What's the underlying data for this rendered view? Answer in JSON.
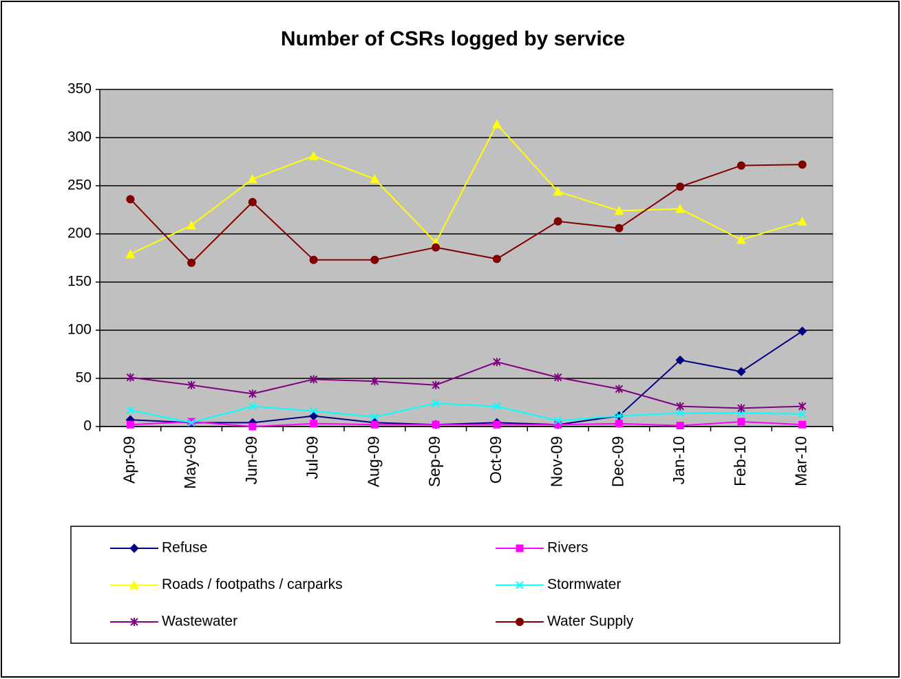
{
  "chart_data": {
    "type": "line",
    "title": "Number of CSRs logged by service",
    "categories": [
      "Apr-09",
      "May-09",
      "Jun-09",
      "Jul-09",
      "Aug-09",
      "Sep-09",
      "Oct-09",
      "Nov-09",
      "Dec-09",
      "Jan-10",
      "Feb-10",
      "Mar-10"
    ],
    "series": [
      {
        "name": "Refuse",
        "color": "#000080",
        "marker": "diamond",
        "values": [
          7,
          4,
          4,
          11,
          4,
          2,
          4,
          2,
          11,
          69,
          57,
          99
        ]
      },
      {
        "name": "Rivers",
        "color": "#ff00ff",
        "marker": "square",
        "values": [
          2,
          5,
          0,
          3,
          2,
          2,
          2,
          2,
          3,
          1,
          5,
          2
        ]
      },
      {
        "name": "Roads / footpaths / carparks",
        "color": "#ffff00",
        "marker": "triangle",
        "values": [
          179,
          209,
          257,
          281,
          257,
          191,
          314,
          244,
          224,
          226,
          194,
          213
        ]
      },
      {
        "name": "Stormwater",
        "color": "#00ffff",
        "marker": "x",
        "values": [
          17,
          4,
          21,
          16,
          10,
          24,
          21,
          6,
          11,
          14,
          14,
          13
        ]
      },
      {
        "name": "Wastewater",
        "color": "#800080",
        "marker": "star",
        "values": [
          51,
          43,
          34,
          49,
          47,
          43,
          67,
          51,
          39,
          21,
          19,
          21
        ]
      },
      {
        "name": "Water Supply",
        "color": "#800000",
        "marker": "circle",
        "values": [
          236,
          170,
          233,
          173,
          173,
          186,
          174,
          213,
          206,
          249,
          271,
          272
        ]
      }
    ],
    "ylim": [
      0,
      350
    ],
    "yticks": [
      0,
      50,
      100,
      150,
      200,
      250,
      300,
      350
    ],
    "grid": true,
    "legend": "bottom",
    "plot_background": "#c0c0c0"
  }
}
